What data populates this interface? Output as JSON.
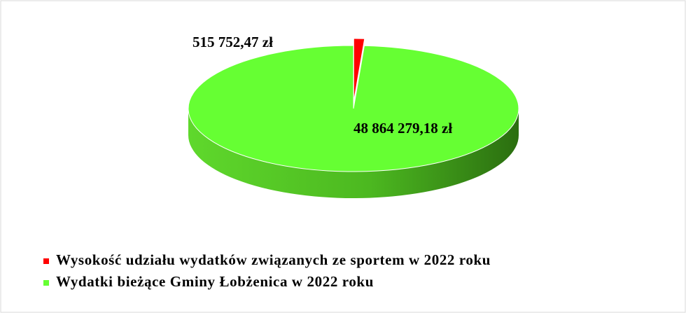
{
  "chart_data": {
    "type": "pie",
    "categories": [
      "Wysokość udziału wydatków związanych ze sportem w 2022 roku",
      "Wydatki bieżące Gminy Łobżenica w 2022 roku"
    ],
    "values": [
      515752.47,
      48864279.18
    ],
    "value_labels": [
      "515 752,47 zł",
      "48 864 279,18 zł"
    ],
    "colors": [
      "#ff0000",
      "#66ff33"
    ],
    "legend": "bottom-left"
  }
}
